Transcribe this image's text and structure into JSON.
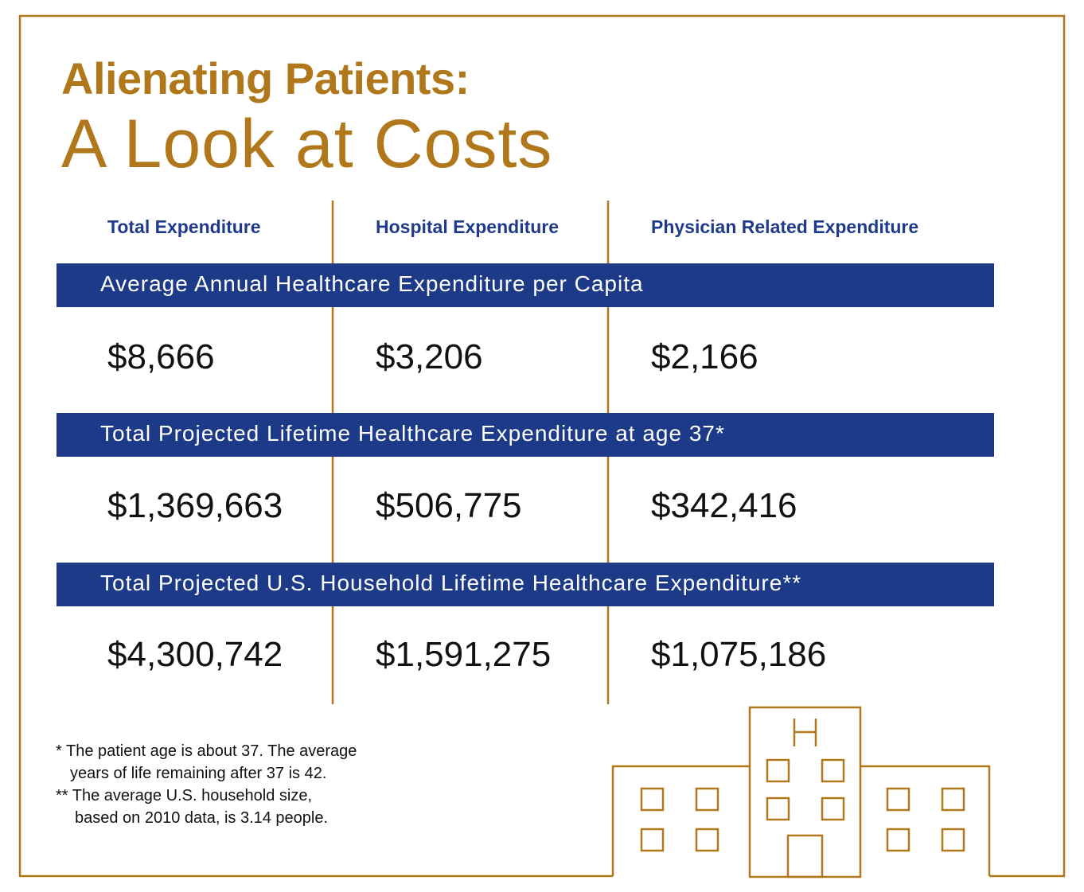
{
  "title": {
    "line1": "Alienating Patients:",
    "line2": "A Look at Costs"
  },
  "columns": [
    "Total Expenditure",
    "Hospital Expenditure",
    "Physician Related Expenditure"
  ],
  "rows": [
    {
      "label": "Average Annual Healthcare Expenditure per Capita",
      "values": [
        "$8,666",
        "$3,206",
        "$2,166"
      ]
    },
    {
      "label": "Total Projected Lifetime Healthcare Expenditure at age 37*",
      "values": [
        "$1,369,663",
        "$506,775",
        "$342,416"
      ]
    },
    {
      "label": "Total Projected U.S. Household Lifetime Healthcare Expenditure**",
      "values": [
        "$4,300,742",
        "$1,591,275",
        "$1,075,186"
      ]
    }
  ],
  "footnotes": {
    "note1_line1": "* The patient age is about 37. The average",
    "note1_line2": "years of life remaining after 37 is 42.",
    "note2_line1": "** The average U.S. household size,",
    "note2_line2": "based on 2010 data, is 3.14 people."
  },
  "colors": {
    "gold": "#B0781A",
    "navy": "#1C3A87",
    "header_text": "#1F3A8A"
  },
  "icons": {
    "illustration": "hospital-building-icon"
  }
}
